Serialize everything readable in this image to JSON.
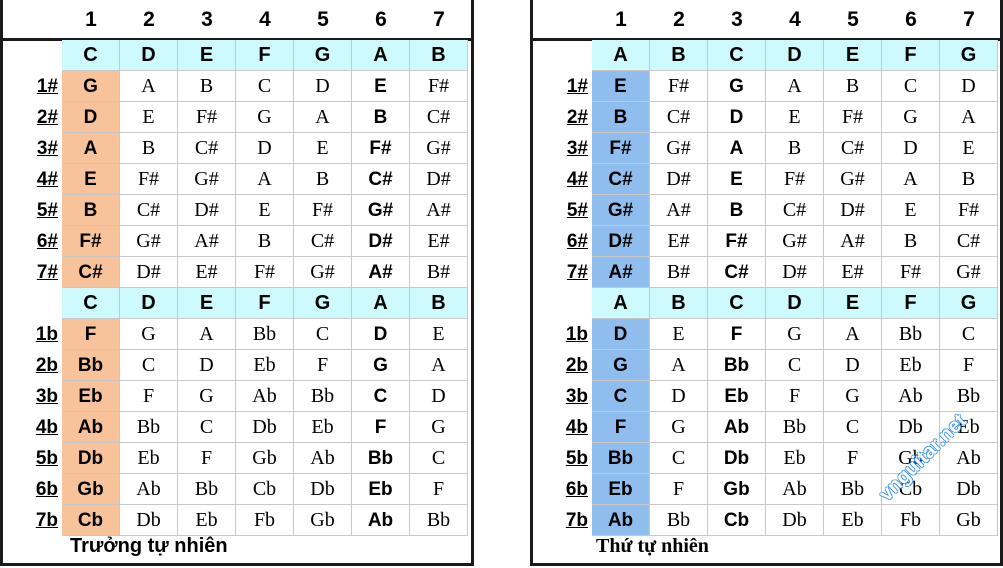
{
  "column_numbers": [
    "1",
    "2",
    "3",
    "4",
    "5",
    "6",
    "7"
  ],
  "left": {
    "caption": "Trưởng tự nhiên",
    "header": [
      "C",
      "D",
      "E",
      "F",
      "G",
      "A",
      "B"
    ],
    "sharp_rows": [
      {
        "label": "1#",
        "cells": [
          "G",
          "A",
          "B",
          "C",
          "D",
          "E",
          "F#"
        ]
      },
      {
        "label": "2#",
        "cells": [
          "D",
          "E",
          "F#",
          "G",
          "A",
          "B",
          "C#"
        ]
      },
      {
        "label": "3#",
        "cells": [
          "A",
          "B",
          "C#",
          "D",
          "E",
          "F#",
          "G#"
        ]
      },
      {
        "label": "4#",
        "cells": [
          "E",
          "F#",
          "G#",
          "A",
          "B",
          "C#",
          "D#"
        ]
      },
      {
        "label": "5#",
        "cells": [
          "B",
          "C#",
          "D#",
          "E",
          "F#",
          "G#",
          "A#"
        ]
      },
      {
        "label": "6#",
        "cells": [
          "F#",
          "G#",
          "A#",
          "B",
          "C#",
          "D#",
          "E#"
        ]
      },
      {
        "label": "7#",
        "cells": [
          "C#",
          "D#",
          "E#",
          "F#",
          "G#",
          "A#",
          "B#"
        ]
      }
    ],
    "flat_rows": [
      {
        "label": "1b",
        "cells": [
          "F",
          "G",
          "A",
          "Bb",
          "C",
          "D",
          "E"
        ]
      },
      {
        "label": "2b",
        "cells": [
          "Bb",
          "C",
          "D",
          "Eb",
          "F",
          "G",
          "A"
        ]
      },
      {
        "label": "3b",
        "cells": [
          "Eb",
          "F",
          "G",
          "Ab",
          "Bb",
          "C",
          "D"
        ]
      },
      {
        "label": "4b",
        "cells": [
          "Ab",
          "Bb",
          "C",
          "Db",
          "Eb",
          "F",
          "G"
        ]
      },
      {
        "label": "5b",
        "cells": [
          "Db",
          "Eb",
          "F",
          "Gb",
          "Ab",
          "Bb",
          "C"
        ]
      },
      {
        "label": "6b",
        "cells": [
          "Gb",
          "Ab",
          "Bb",
          "Cb",
          "Db",
          "Eb",
          "F"
        ]
      },
      {
        "label": "7b",
        "cells": [
          "Cb",
          "Db",
          "Eb",
          "Fb",
          "Gb",
          "Ab",
          "Bb"
        ]
      }
    ],
    "bold_column": 5,
    "key_color": "#f8c39a"
  },
  "right": {
    "caption": "Thứ tự nhiên",
    "header": [
      "A",
      "B",
      "C",
      "D",
      "E",
      "F",
      "G"
    ],
    "sharp_rows": [
      {
        "label": "1#",
        "cells": [
          "E",
          "F#",
          "G",
          "A",
          "B",
          "C",
          "D"
        ]
      },
      {
        "label": "2#",
        "cells": [
          "B",
          "C#",
          "D",
          "E",
          "F#",
          "G",
          "A"
        ]
      },
      {
        "label": "3#",
        "cells": [
          "F#",
          "G#",
          "A",
          "B",
          "C#",
          "D",
          "E"
        ]
      },
      {
        "label": "4#",
        "cells": [
          "C#",
          "D#",
          "E",
          "F#",
          "G#",
          "A",
          "B"
        ]
      },
      {
        "label": "5#",
        "cells": [
          "G#",
          "A#",
          "B",
          "C#",
          "D#",
          "E",
          "F#"
        ]
      },
      {
        "label": "6#",
        "cells": [
          "D#",
          "E#",
          "F#",
          "G#",
          "A#",
          "B",
          "C#"
        ]
      },
      {
        "label": "7#",
        "cells": [
          "A#",
          "B#",
          "C#",
          "D#",
          "E#",
          "F#",
          "G#"
        ]
      }
    ],
    "flat_rows": [
      {
        "label": "1b",
        "cells": [
          "D",
          "E",
          "F",
          "G",
          "A",
          "Bb",
          "C"
        ]
      },
      {
        "label": "2b",
        "cells": [
          "G",
          "A",
          "Bb",
          "C",
          "D",
          "Eb",
          "F"
        ]
      },
      {
        "label": "3b",
        "cells": [
          "C",
          "D",
          "Eb",
          "F",
          "G",
          "Ab",
          "Bb"
        ]
      },
      {
        "label": "4b",
        "cells": [
          "F",
          "G",
          "Ab",
          "Bb",
          "C",
          "Db",
          "Eb"
        ]
      },
      {
        "label": "5b",
        "cells": [
          "Bb",
          "C",
          "Db",
          "Eb",
          "F",
          "Gb",
          "Ab"
        ]
      },
      {
        "label": "6b",
        "cells": [
          "Eb",
          "F",
          "Gb",
          "Ab",
          "Bb",
          "Cb",
          "Db"
        ]
      },
      {
        "label": "7b",
        "cells": [
          "Ab",
          "Bb",
          "Cb",
          "Db",
          "Eb",
          "Fb",
          "Gb"
        ]
      }
    ],
    "bold_column": 2,
    "key_color": "#8fbdee"
  },
  "watermark": "vnguitar.net",
  "header_color": "#cdfafc"
}
